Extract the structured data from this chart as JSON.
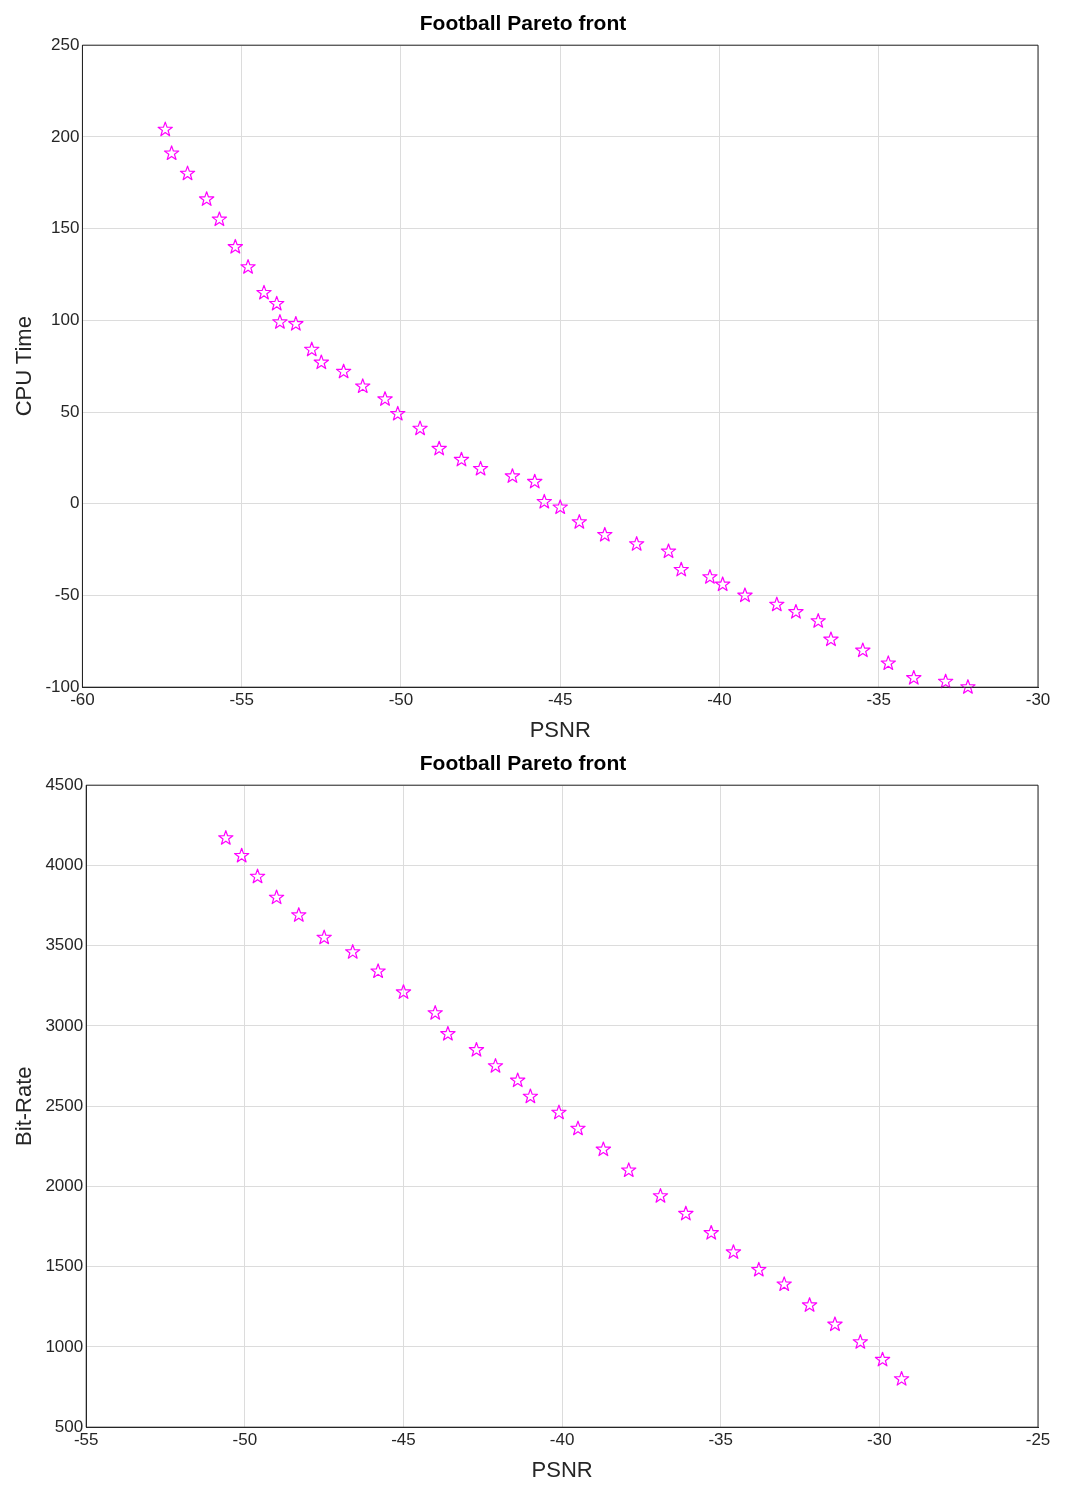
{
  "chart_data": [
    {
      "type": "scatter",
      "title": "Football Pareto front",
      "xlabel": "PSNR",
      "ylabel": "CPU Time",
      "color": "#ff00ff",
      "marker": "star",
      "grid": true,
      "x": [
        -57.4,
        -57.2,
        -56.7,
        -56.1,
        -55.7,
        -55.2,
        -54.8,
        -54.3,
        -53.9,
        -53.8,
        -53.3,
        -52.8,
        -52.5,
        -51.8,
        -51.2,
        -50.5,
        -50.1,
        -49.4,
        -48.8,
        -48.1,
        -47.5,
        -46.5,
        -45.8,
        -45.5,
        -45.0,
        -44.4,
        -43.6,
        -42.6,
        -41.6,
        -41.2,
        -40.3,
        -39.9,
        -39.2,
        -38.2,
        -37.6,
        -36.9,
        -36.5,
        -35.5,
        -34.7,
        -33.9,
        -32.9,
        -32.2
      ],
      "values": [
        204,
        191,
        180,
        166,
        155,
        140,
        129,
        115,
        109,
        99,
        98,
        84,
        77,
        72,
        64,
        57,
        49,
        41,
        30,
        24,
        19,
        15,
        12,
        1,
        -2,
        -10,
        -17,
        -22,
        -26,
        -36,
        -40,
        -44,
        -50,
        -55,
        -59,
        -64,
        -74,
        -80,
        -87,
        -95,
        -97,
        -100
      ],
      "xlim": [
        -60,
        -30
      ],
      "xticks": [
        -60,
        -55,
        -50,
        -45,
        -40,
        -35,
        -30
      ],
      "ylim": [
        -100,
        250
      ],
      "yticks": [
        -100,
        -50,
        0,
        50,
        100,
        150,
        200,
        250
      ]
    },
    {
      "type": "scatter",
      "title": "Football Pareto front",
      "xlabel": "PSNR",
      "ylabel": "Bit-Rate",
      "color": "#ff00ff",
      "marker": "star",
      "grid": true,
      "x": [
        -50.6,
        -50.1,
        -49.6,
        -49.0,
        -48.3,
        -47.5,
        -46.6,
        -45.8,
        -45.0,
        -44.0,
        -43.6,
        -42.7,
        -42.1,
        -41.4,
        -41.0,
        -40.1,
        -39.5,
        -38.7,
        -37.9,
        -36.9,
        -36.1,
        -35.3,
        -34.6,
        -33.8,
        -33.0,
        -32.2,
        -31.4,
        -30.6,
        -29.9,
        -29.3
      ],
      "values": [
        4170,
        4060,
        3930,
        3800,
        3690,
        3550,
        3460,
        3340,
        3210,
        3080,
        2950,
        2850,
        2750,
        2660,
        2560,
        2460,
        2360,
        2230,
        2100,
        1940,
        1830,
        1710,
        1590,
        1480,
        1390,
        1260,
        1140,
        1030,
        920,
        800
      ],
      "xlim": [
        -55,
        -25
      ],
      "xticks": [
        -55,
        -50,
        -45,
        -40,
        -35,
        -30,
        -25
      ],
      "ylim": [
        500,
        4500
      ],
      "yticks": [
        500,
        1000,
        1500,
        2000,
        2500,
        3000,
        3500,
        4000,
        4500
      ]
    }
  ]
}
